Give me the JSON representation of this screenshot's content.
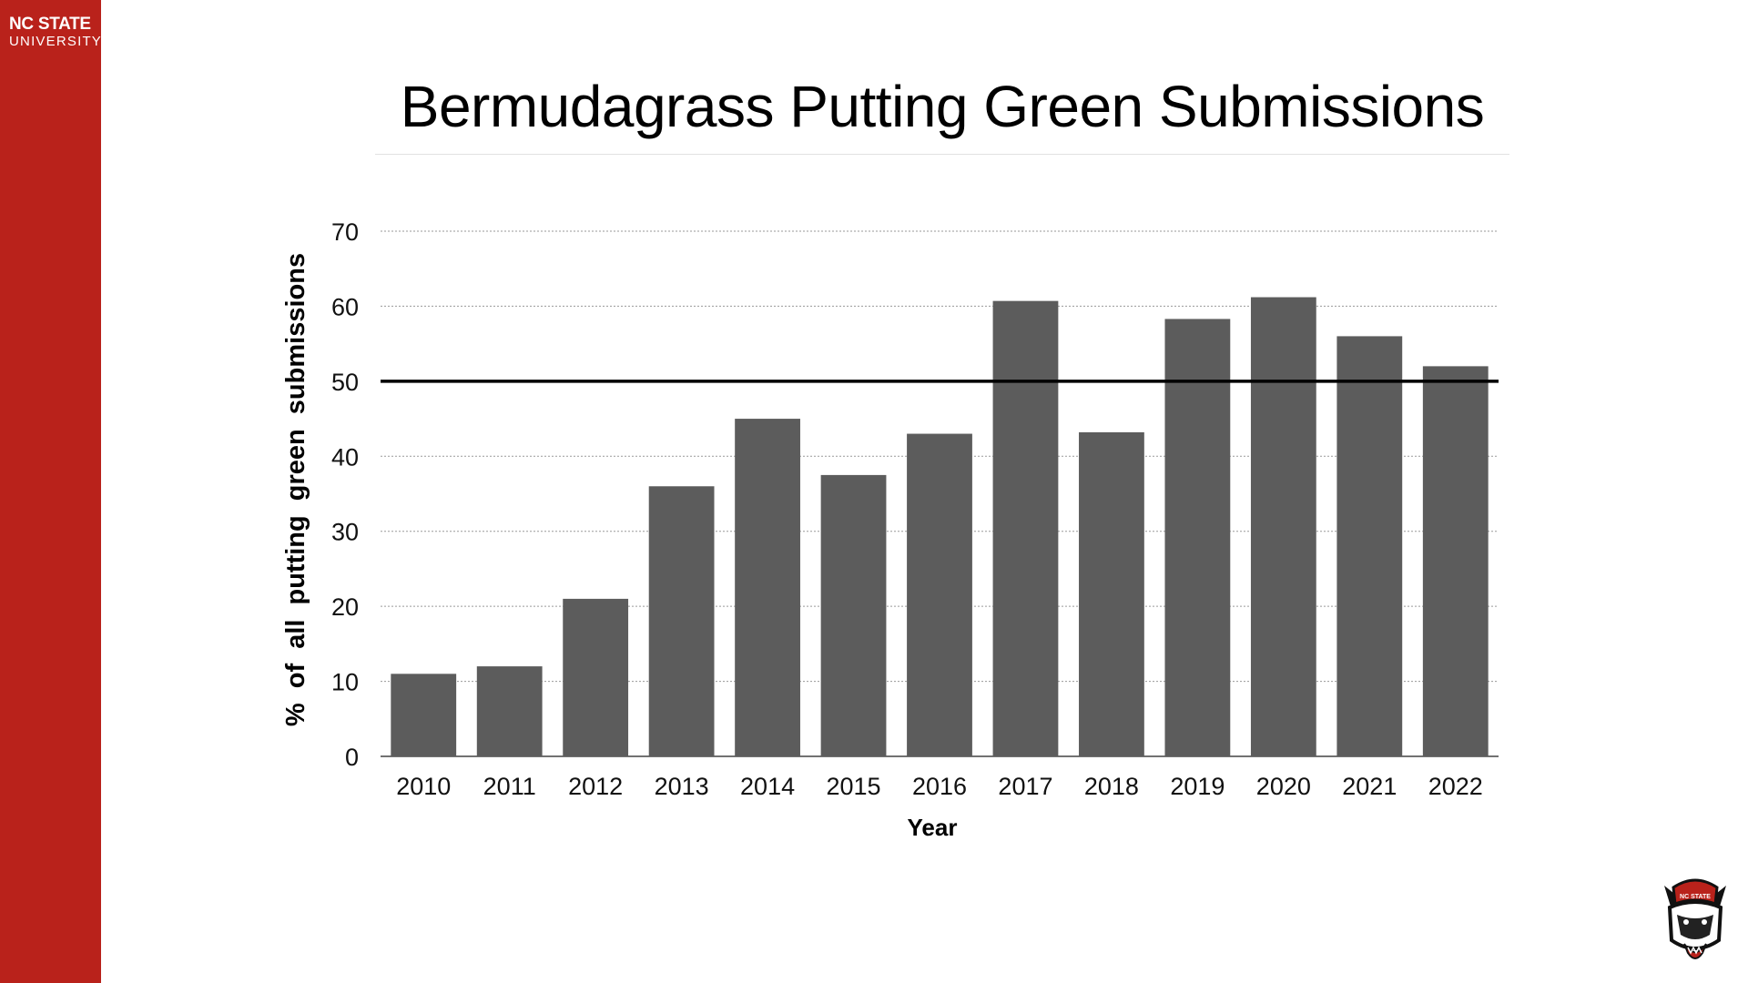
{
  "branding": {
    "line1": "NC STATE",
    "line2": "UNIVERSITY",
    "sidebar_color": "#b9221b"
  },
  "mascot": {
    "icon": "wolf-mascot-icon",
    "hat_text": "NC STATE"
  },
  "chart_data": {
    "type": "bar",
    "title": "Bermudagrass Putting Green Submissions",
    "xlabel": "Year",
    "ylabel": "% of all putting green submissions",
    "categories": [
      "2010",
      "2011",
      "2012",
      "2013",
      "2014",
      "2015",
      "2016",
      "2017",
      "2018",
      "2019",
      "2020",
      "2021",
      "2022"
    ],
    "values": [
      11,
      12,
      21,
      36,
      45,
      37.5,
      43,
      60.7,
      43.2,
      58.3,
      61.2,
      56,
      52
    ],
    "ylim": [
      0,
      70
    ],
    "yticks": [
      0,
      10,
      20,
      30,
      40,
      50,
      60,
      70
    ],
    "reference_line": 50,
    "bar_color": "#5c5c5c",
    "grid": true,
    "legend": "none"
  }
}
